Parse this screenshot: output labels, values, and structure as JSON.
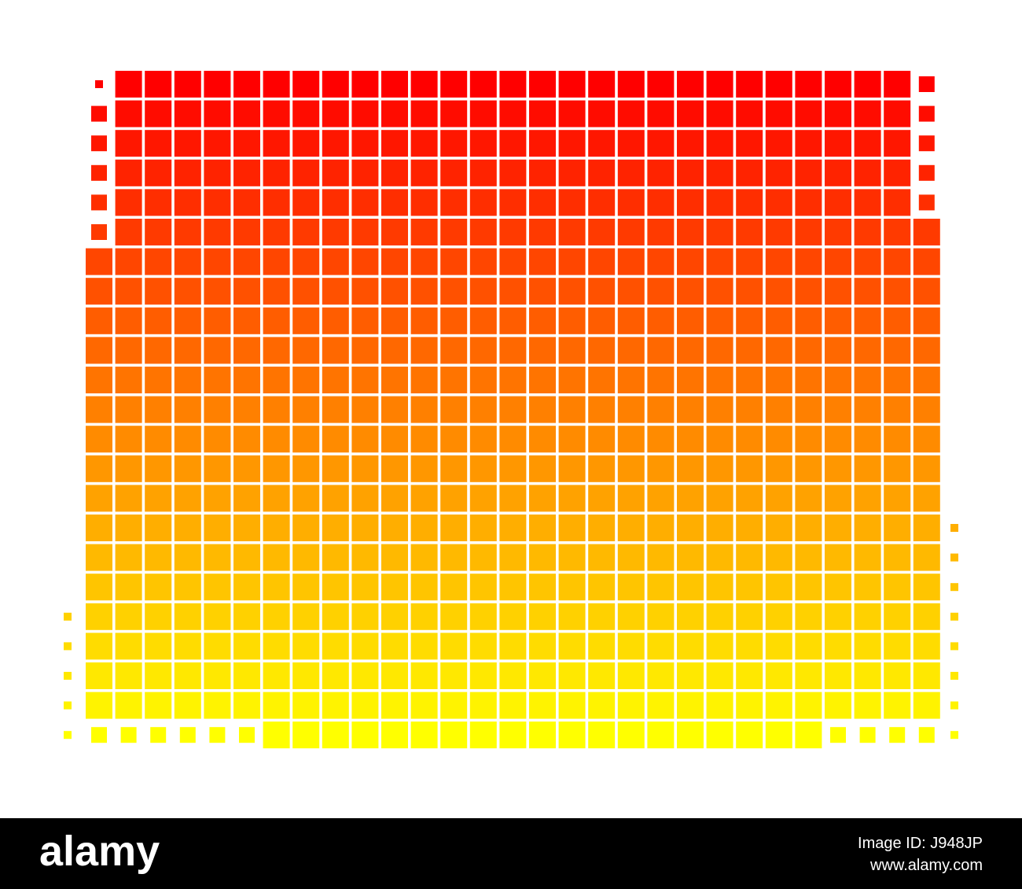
{
  "footer": {
    "logo": "alamy",
    "image_id": "Image ID: J948JP",
    "url": "www.alamy.com"
  }
}
